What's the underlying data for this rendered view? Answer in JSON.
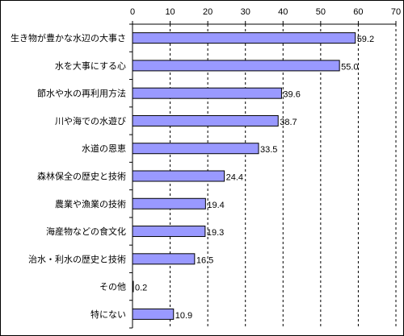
{
  "chart_data": {
    "type": "bar",
    "orientation": "horizontal",
    "categories": [
      "生き物が豊かな水辺の大事さ",
      "水を大事にする心",
      "節水や水の再利用方法",
      "川や海での水遊び",
      "水道の恩恵",
      "森林保全の歴史と技術",
      "農業や漁業の技術",
      "海産物などの食文化",
      "治水・利水の歴史と技術",
      "その他",
      "特にない"
    ],
    "values": [
      59.2,
      55.0,
      39.6,
      38.7,
      33.5,
      24.4,
      19.4,
      19.3,
      16.5,
      0.2,
      10.9
    ],
    "value_labels": [
      "59.2",
      "55.0",
      "39.6",
      "38.7",
      "33.5",
      "24.4",
      "19.4",
      "19.3",
      "16.5",
      "0.2",
      "10.9"
    ],
    "xlim": [
      0,
      70
    ],
    "ticks": [
      0,
      10,
      20,
      30,
      40,
      50,
      60,
      70
    ],
    "tick_labels": [
      "0",
      "10",
      "20",
      "30",
      "40",
      "50",
      "60",
      "70"
    ],
    "axis_position": "top",
    "grid": "dashed vertical",
    "title": "",
    "xlabel": "",
    "ylabel": "",
    "colors": {
      "bar_fill": "#9999FF",
      "bar_stroke": "#000000",
      "grid": "#000000",
      "background": "#FFFFFF"
    }
  }
}
